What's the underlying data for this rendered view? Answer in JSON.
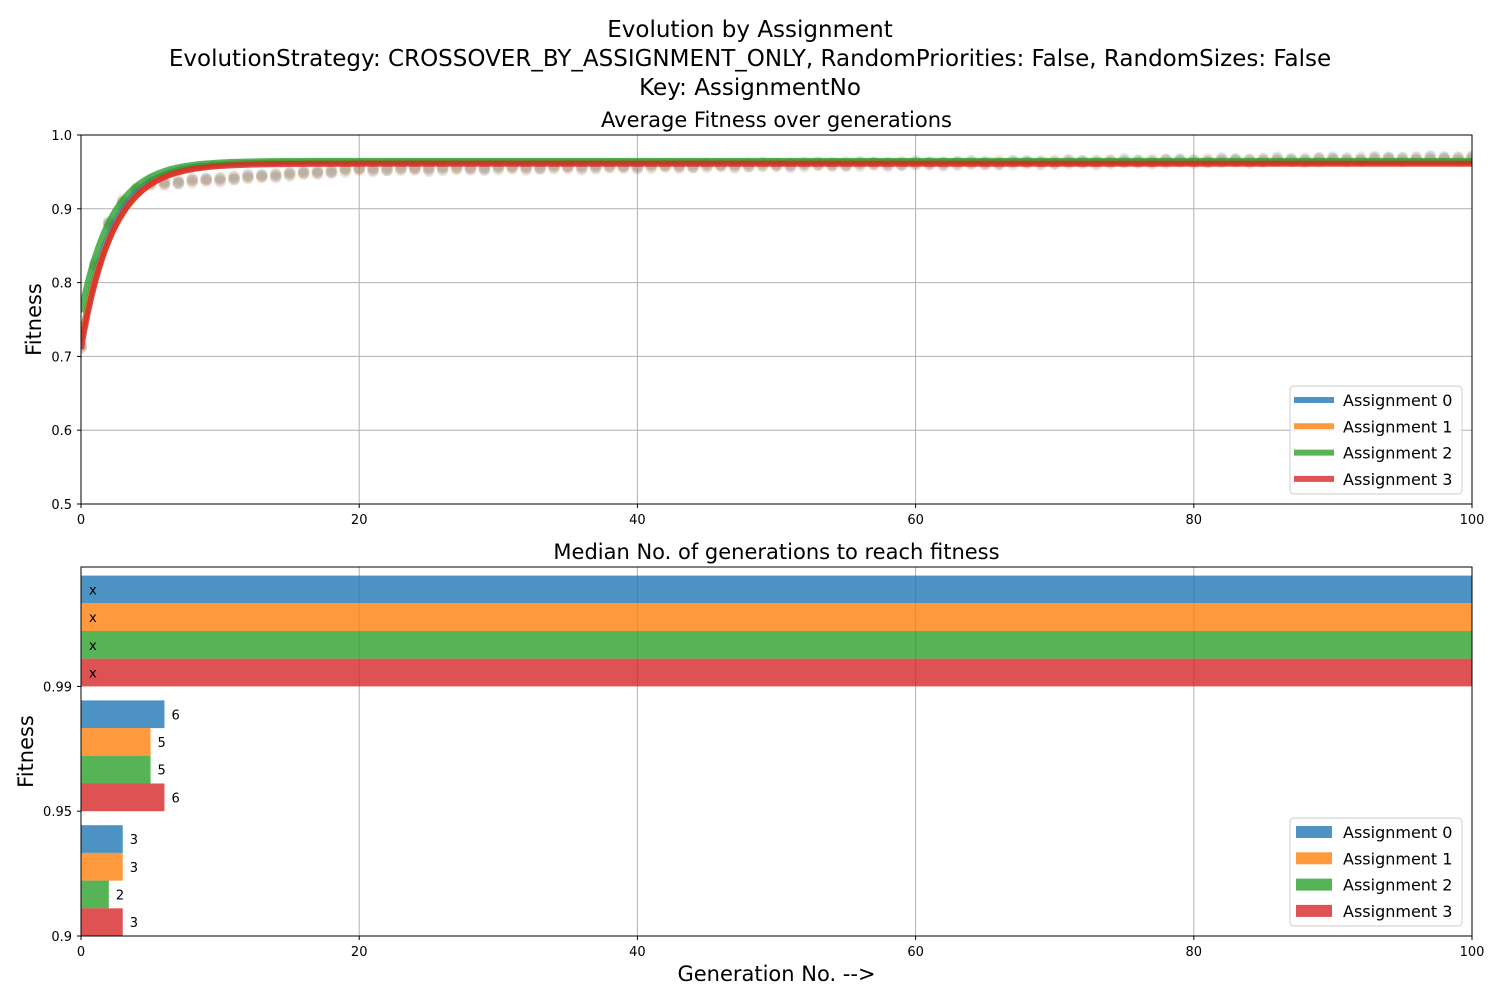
{
  "figure": {
    "title_lines": [
      "Evolution by Assignment",
      "EvolutionStrategy: CROSSOVER_BY_ASSIGNMENT_ONLY, RandomPriorities: False, RandomSizes: False",
      "Key: AssignmentNo"
    ],
    "colors": [
      "#1f77b4",
      "#ff7f0e",
      "#2ca02c",
      "#d62728"
    ]
  },
  "chart_data": [
    {
      "type": "line",
      "title": "Average Fitness over generations",
      "xlabel": "",
      "ylabel": "Fitness",
      "xlim": [
        0,
        100
      ],
      "ylim": [
        0.5,
        1.0
      ],
      "x_ticks": [
        0,
        20,
        40,
        60,
        80,
        100
      ],
      "y_ticks": [
        0.5,
        0.6,
        0.7,
        0.8,
        0.9,
        1.0
      ],
      "grid": true,
      "legend_position": "lower-right",
      "series": [
        {
          "name": "Assignment 0",
          "color": "#1f77b4",
          "start": 0.72,
          "plateau": 0.963,
          "rate": 0.45
        },
        {
          "name": "Assignment 1",
          "color": "#ff7f0e",
          "start": 0.72,
          "plateau": 0.963,
          "rate": 0.42
        },
        {
          "name": "Assignment 2",
          "color": "#2ca02c",
          "start": 0.76,
          "plateau": 0.965,
          "rate": 0.45
        },
        {
          "name": "Assignment 3",
          "color": "#d62728",
          "start": 0.71,
          "plateau": 0.961,
          "rate": 0.44
        }
      ],
      "scatter_trend": {
        "start": 0.715,
        "g5": 0.935,
        "g20": 0.955,
        "g100": 0.97
      }
    },
    {
      "type": "bar",
      "orientation": "horizontal",
      "title": "Median No. of generations to reach fitness",
      "xlabel": "Generation No. -->",
      "ylabel": "Fitness",
      "xlim": [
        0,
        100
      ],
      "x_ticks": [
        0,
        20,
        40,
        60,
        80,
        100
      ],
      "grid": true,
      "legend_position": "lower-right",
      "categories": [
        "0.9",
        "0.95",
        "0.99"
      ],
      "series": [
        {
          "name": "Assignment 0",
          "color": "#1f77b4",
          "values": [
            3,
            6,
            100
          ],
          "labels": [
            "3",
            "6",
            "x"
          ]
        },
        {
          "name": "Assignment 1",
          "color": "#ff7f0e",
          "values": [
            3,
            5,
            100
          ],
          "labels": [
            "3",
            "5",
            "x"
          ]
        },
        {
          "name": "Assignment 2",
          "color": "#2ca02c",
          "values": [
            2,
            5,
            100
          ],
          "labels": [
            "2",
            "5",
            "x"
          ]
        },
        {
          "name": "Assignment 3",
          "color": "#d62728",
          "values": [
            3,
            6,
            100
          ],
          "labels": [
            "3",
            "6",
            "x"
          ]
        }
      ]
    }
  ]
}
